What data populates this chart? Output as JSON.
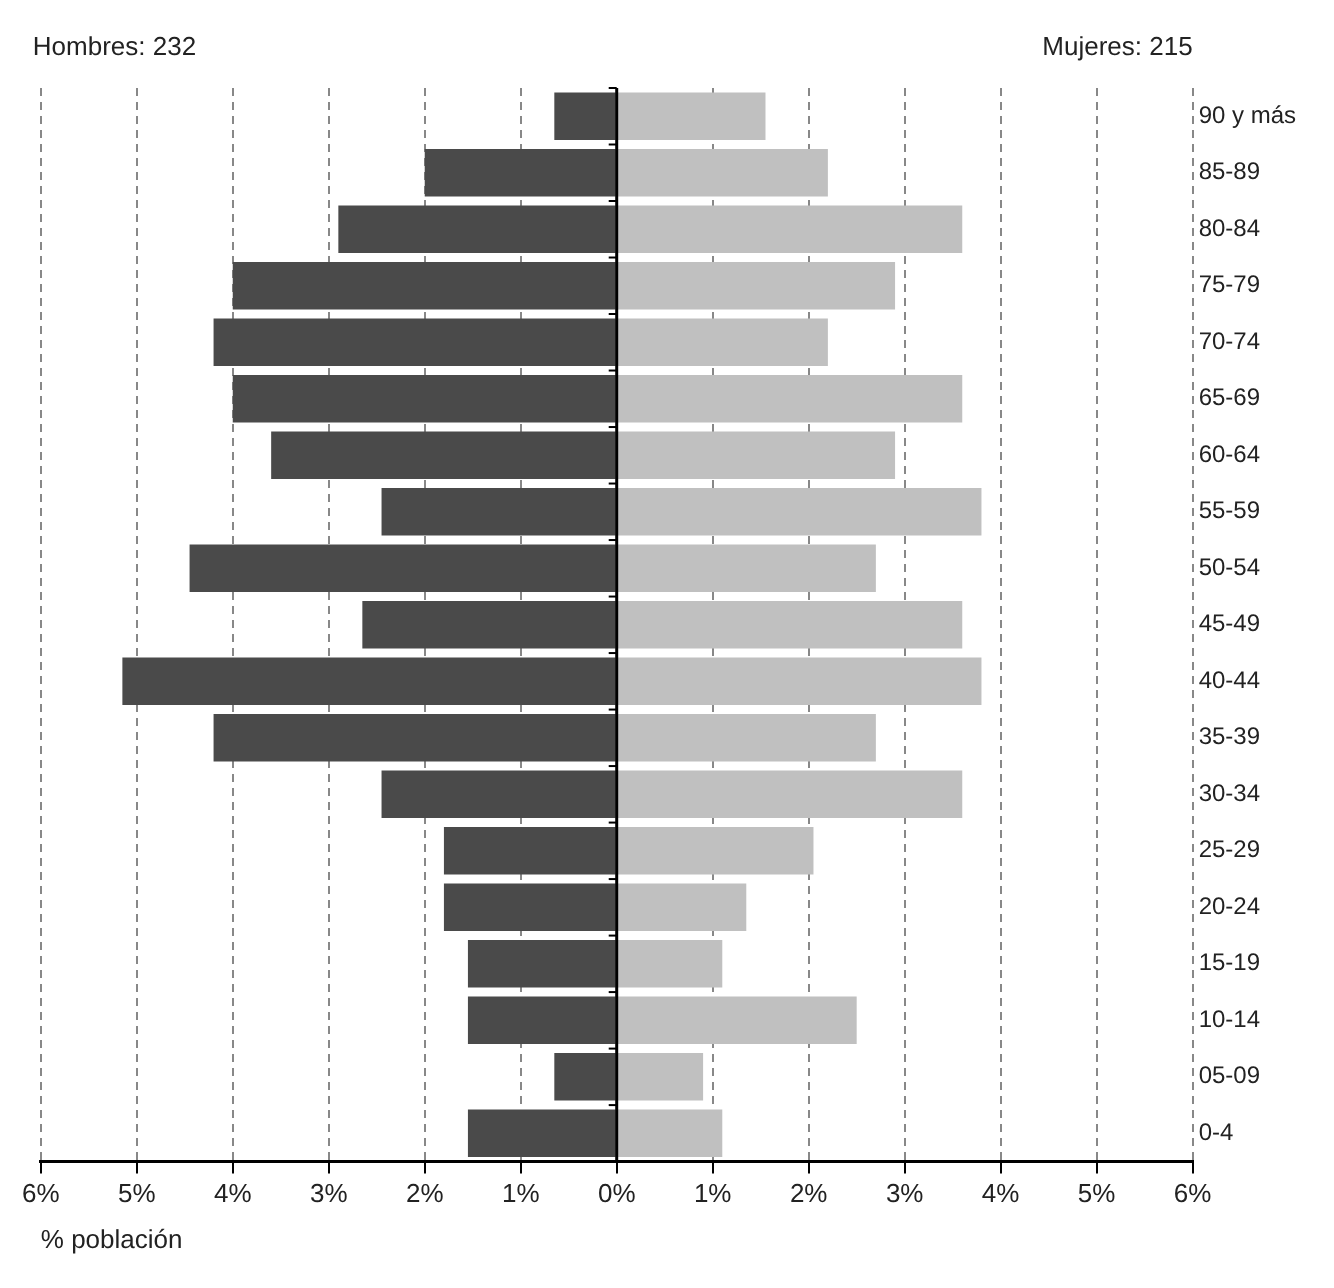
{
  "chart_data": {
    "type": "bar",
    "orientation": "horizontal",
    "stacked": true,
    "xlabel": "% población",
    "categories": [
      "90 y más",
      "85-89",
      "80-84",
      "75-79",
      "70-74",
      "65-69",
      "60-64",
      "55-59",
      "50-54",
      "45-49",
      "40-44",
      "35-39",
      "30-34",
      "25-29",
      "20-24",
      "15-19",
      "10-14",
      "05-09",
      "0-4"
    ],
    "series": [
      {
        "color": "#4a4a4a",
        "values": [
          -0.65,
          -2.0,
          -2.9,
          -4.0,
          -4.2,
          -4.0,
          -3.6,
          -2.45,
          -4.45,
          -2.65,
          -5.15,
          -4.2,
          -2.45,
          -1.8,
          -1.8,
          -1.55,
          -1.55,
          -0.65,
          -1.55
        ]
      },
      {
        "color": "#c0c0c0",
        "values": [
          1.55,
          2.2,
          3.6,
          2.9,
          2.2,
          3.6,
          2.9,
          3.8,
          2.7,
          3.6,
          3.8,
          2.7,
          3.6,
          2.05,
          1.35,
          1.1,
          2.5,
          0.9,
          1.1
        ]
      }
    ],
    "xlim": [
      -6,
      6
    ],
    "xticks": [
      {
        "value": -6,
        "label": "6%"
      },
      {
        "value": -5,
        "label": "5%"
      },
      {
        "value": -4,
        "label": "4%"
      },
      {
        "value": -3,
        "label": "3%"
      },
      {
        "value": -2,
        "label": "2%"
      },
      {
        "value": -1,
        "label": "1%"
      },
      {
        "value": 0,
        "label": "0%"
      },
      {
        "value": 1,
        "label": "1%"
      },
      {
        "value": 2,
        "label": "2%"
      },
      {
        "value": 3,
        "label": "3%"
      },
      {
        "value": 4,
        "label": "4%"
      },
      {
        "value": 5,
        "label": "5%"
      },
      {
        "value": 6,
        "label": "6%"
      }
    ],
    "annotations": [
      "Hombres: 232",
      "Mujeres: 215"
    ],
    "grid": "x",
    "legend": false
  }
}
